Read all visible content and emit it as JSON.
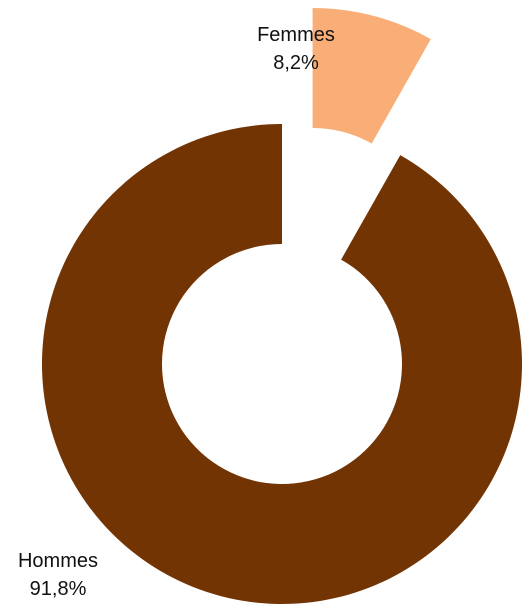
{
  "chart_data": {
    "type": "pie",
    "variant": "donut",
    "title": "",
    "categories": [
      "Femmes",
      "Hommes"
    ],
    "values": [
      8.2,
      91.8
    ],
    "value_labels": [
      "8,2%",
      "91,8%"
    ],
    "colors": [
      "#F9AE78",
      "#733404"
    ],
    "exploded": "Femmes",
    "legend": "none"
  }
}
